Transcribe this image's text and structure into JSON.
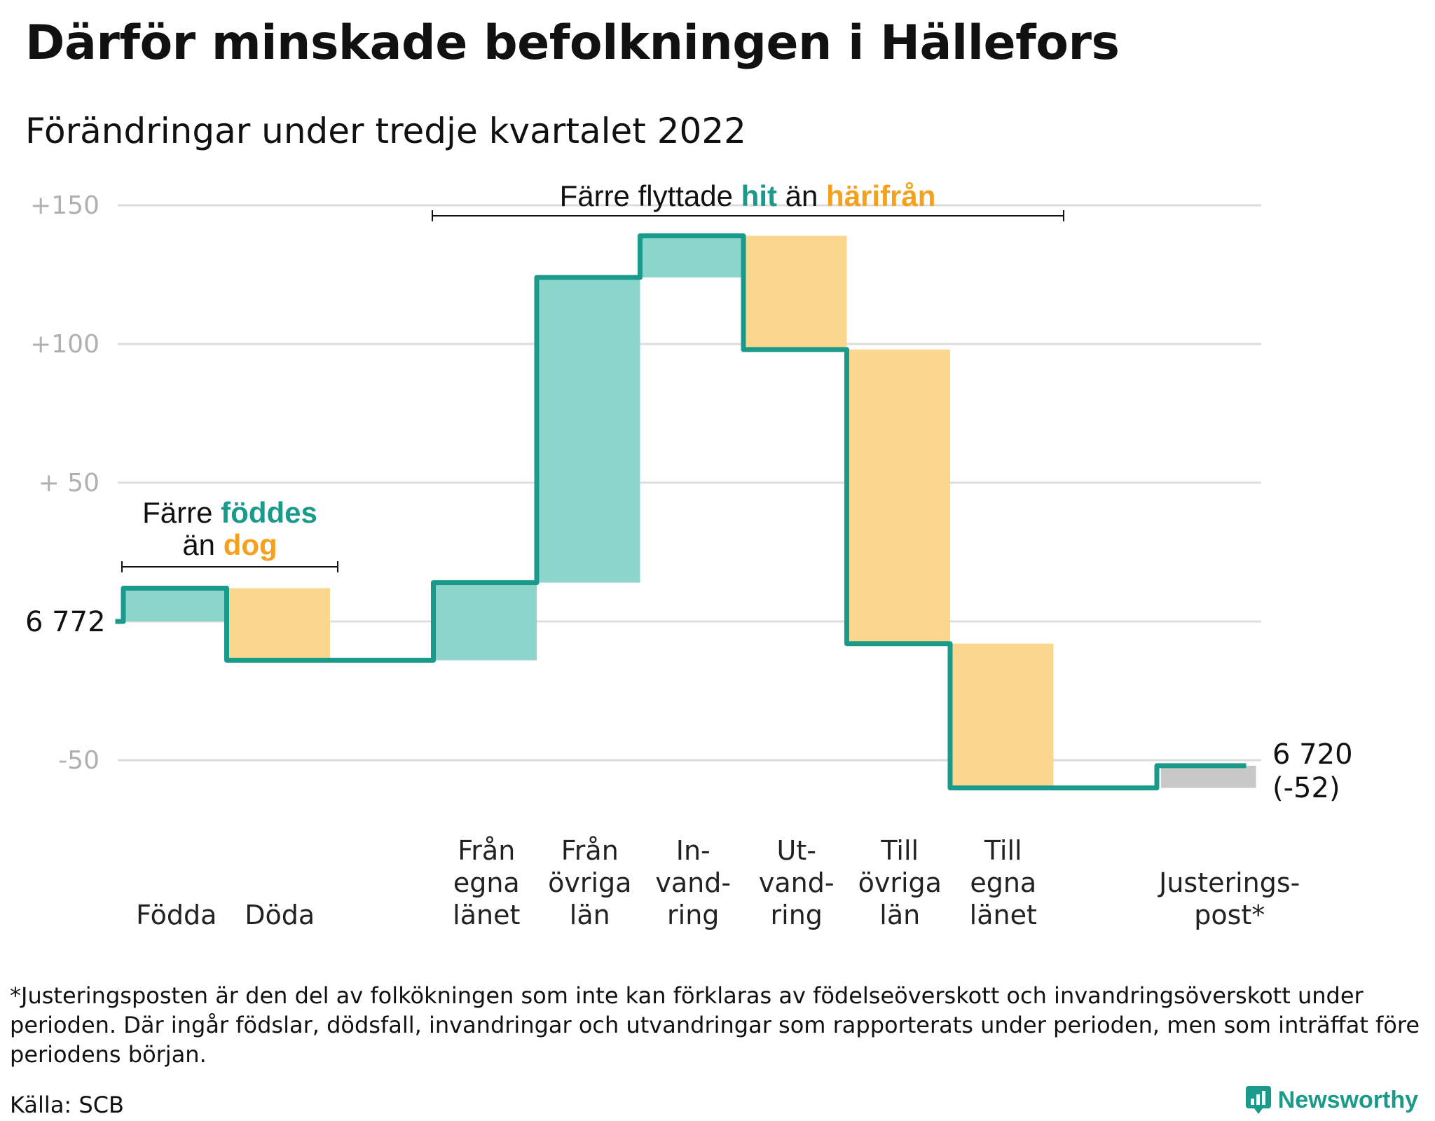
{
  "title": "Därför minskade befolkningen i Hällefors",
  "subtitle": "Förändringar under tredje kvartalet 2022",
  "colors": {
    "positive": "#8dd5cc",
    "negative": "#fbd68d",
    "adjustment": "#c8c8c8",
    "line": "#1a9a8a",
    "hit": "#1a9a8a",
    "harifran": "#f4a11d",
    "grid": "#dddddd"
  },
  "annotations": {
    "births": {
      "line1_pre": "Färre ",
      "line1_hl": "föddes",
      "line2_pre": "än ",
      "line2_hl": "dog"
    },
    "migration": {
      "pre": "Färre flyttade ",
      "hl1": "hit",
      "mid": " än ",
      "hl2": "härifrån"
    }
  },
  "labels": {
    "start": "6 772",
    "end_value": "6 720",
    "end_change": "(-52)"
  },
  "chart_data": {
    "type": "waterfall",
    "start_value": 6772,
    "end_value": 6720,
    "net_change": -52,
    "y_ticks": [
      {
        "value": 150,
        "label": "+150"
      },
      {
        "value": 100,
        "label": "+100"
      },
      {
        "value": 50,
        "label": "+ 50"
      },
      {
        "value": -50,
        "label": "-50"
      }
    ],
    "ylim": [
      -60,
      155
    ],
    "grid": true,
    "steps": [
      {
        "label_lines": [
          "Födda"
        ],
        "value": 12,
        "kind": "in"
      },
      {
        "label_lines": [
          "Döda"
        ],
        "value": -26,
        "kind": "out"
      },
      {
        "label_lines": [],
        "value": 0,
        "kind": "gap"
      },
      {
        "label_lines": [
          "Från",
          "egna",
          "länet"
        ],
        "value": 28,
        "kind": "in"
      },
      {
        "label_lines": [
          "Från",
          "övriga",
          "län"
        ],
        "value": 110,
        "kind": "in"
      },
      {
        "label_lines": [
          "In-",
          "vand-",
          "ring"
        ],
        "value": 15,
        "kind": "in"
      },
      {
        "label_lines": [
          "Ut-",
          "vand-",
          "ring"
        ],
        "value": -41,
        "kind": "out"
      },
      {
        "label_lines": [
          "Till",
          "övriga",
          "län"
        ],
        "value": -106,
        "kind": "out"
      },
      {
        "label_lines": [
          "Till",
          "egna",
          "länet"
        ],
        "value": -52,
        "kind": "out"
      },
      {
        "label_lines": [],
        "value": 0,
        "kind": "gap"
      },
      {
        "label_lines": [
          "Justerings-",
          "post*"
        ],
        "value": 8,
        "kind": "adjust"
      }
    ]
  },
  "footnote": "*Justeringsposten är den del av folkökningen som inte kan förklaras av födelseöverskott och invandringsöverskott under perioden. Där ingår födslar, dödsfall, invandringar och utvandringar som rapporterats under perioden, men som inträffat före periodens början.",
  "source": "Källa: SCB",
  "brand": "Newsworthy"
}
